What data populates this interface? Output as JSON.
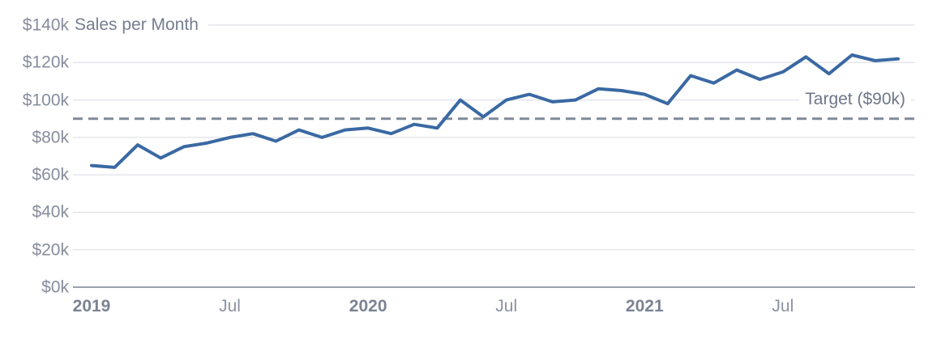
{
  "chart_data": {
    "type": "line",
    "title": "Sales per Month",
    "unit": "USD thousands per month",
    "x": [
      "2019-01",
      "2019-02",
      "2019-03",
      "2019-04",
      "2019-05",
      "2019-06",
      "2019-07",
      "2019-08",
      "2019-09",
      "2019-10",
      "2019-11",
      "2019-12",
      "2020-01",
      "2020-02",
      "2020-03",
      "2020-04",
      "2020-05",
      "2020-06",
      "2020-07",
      "2020-08",
      "2020-09",
      "2020-10",
      "2020-11",
      "2020-12",
      "2021-01",
      "2021-02",
      "2021-03",
      "2021-04",
      "2021-05",
      "2021-06",
      "2021-07",
      "2021-08",
      "2021-09",
      "2021-10",
      "2021-11",
      "2021-12"
    ],
    "series": [
      {
        "name": "Sales",
        "values_usd_k": [
          65,
          64,
          76,
          69,
          75,
          77,
          80,
          82,
          78,
          84,
          80,
          84,
          85,
          82,
          87,
          85,
          100,
          91,
          100,
          103,
          99,
          100,
          106,
          105,
          103,
          98,
          113,
          109,
          116,
          111,
          115,
          123,
          114,
          124,
          121,
          122
        ]
      }
    ],
    "target": {
      "label": "Target ($90k)",
      "value_usd_k": 90,
      "line_style": "dashed"
    },
    "ylim_usd_k": [
      0,
      140
    ],
    "y_tick_step_usd_k": 20,
    "y_tick_labels": [
      "$0k",
      "$20k",
      "$40k",
      "$60k",
      "$80k",
      "$100k",
      "$120k",
      "$140k"
    ],
    "x_tick_labels": [
      {
        "label": "2019",
        "month_index": 0,
        "bold": true
      },
      {
        "label": "Jul",
        "month_index": 6,
        "bold": false
      },
      {
        "label": "2020",
        "month_index": 12,
        "bold": true
      },
      {
        "label": "Jul",
        "month_index": 18,
        "bold": false
      },
      {
        "label": "2021",
        "month_index": 24,
        "bold": true
      },
      {
        "label": "Jul",
        "month_index": 30,
        "bold": false
      }
    ],
    "grid": "horizontal",
    "legend": "none",
    "colors": {
      "series_line": "#3a69a3",
      "target_line": "#7f8999",
      "grid_line": "#e3e5ea",
      "axis_line": "#9aa1ad",
      "tick_text": "#868d9c",
      "title_text": "#757d8e"
    }
  }
}
